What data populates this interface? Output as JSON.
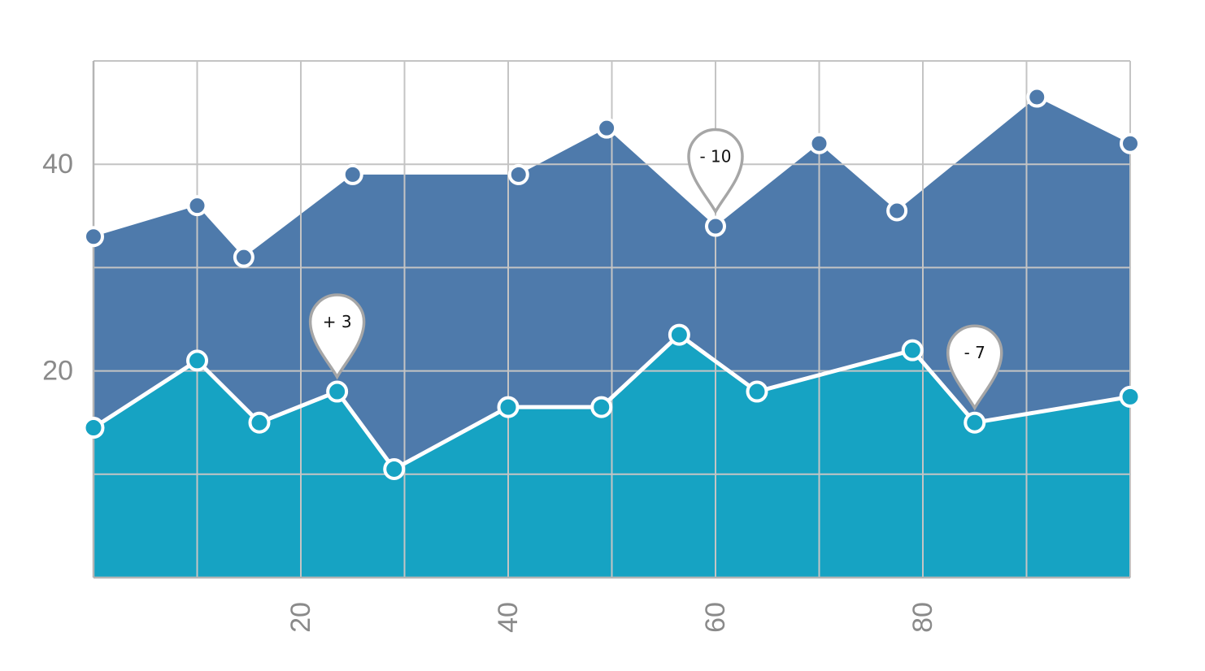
{
  "chart_data": {
    "type": "area",
    "x_ticks": [
      "20",
      "40",
      "60",
      "80"
    ],
    "y_ticks": [
      "20",
      "40"
    ],
    "xlim": [
      0,
      100
    ],
    "ylim": [
      0,
      50
    ],
    "grid": true,
    "series": [
      {
        "color": "#4e7aab",
        "marker": "filled",
        "x": [
          0,
          10,
          14.5,
          25,
          41,
          49.5,
          60,
          70,
          77.5,
          91,
          100
        ],
        "y": [
          33,
          36,
          31,
          39,
          39,
          43.5,
          34,
          42,
          35.5,
          46.5,
          42
        ]
      },
      {
        "color": "#16a3c3",
        "marker": "hollow",
        "x": [
          0,
          10,
          16,
          23.5,
          29,
          40,
          49,
          56.5,
          64,
          79,
          85,
          100
        ],
        "y": [
          14.5,
          21,
          15,
          18,
          10.5,
          16.5,
          16.5,
          23.5,
          18,
          22,
          15,
          17.5
        ]
      }
    ],
    "annotations": [
      {
        "label": "+ 3",
        "series": 1,
        "point": 3
      },
      {
        "label": "- 10",
        "series": 0,
        "point": 6
      },
      {
        "label": "- 7",
        "series": 1,
        "point": 10
      }
    ]
  }
}
